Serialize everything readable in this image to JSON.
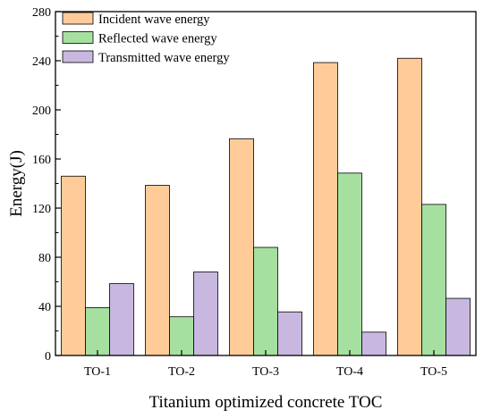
{
  "chart_data": {
    "type": "bar",
    "title": "",
    "xlabel": "Titanium optimized concrete TOC",
    "ylabel": "Energy(J)",
    "categories": [
      "TO-1",
      "TO-2",
      "TO-3",
      "TO-4",
      "TO-5"
    ],
    "series": [
      {
        "name": "Incident wave energy",
        "color": "#FFCC99",
        "values": [
          146,
          138.5,
          176.5,
          238.5,
          242
        ]
      },
      {
        "name": "Reflected wave energy",
        "color": "#A6E0A0",
        "values": [
          39,
          31.5,
          88,
          148.5,
          123
        ]
      },
      {
        "name": "Transmitted wave energy",
        "color": "#C8B8E0",
        "values": [
          58.5,
          68,
          35.5,
          19,
          46.5
        ]
      }
    ],
    "ylim": [
      0,
      280
    ],
    "yticks": [
      0,
      40,
      80,
      120,
      160,
      200,
      240,
      280
    ],
    "grid": false,
    "legend_position": "top-left"
  }
}
